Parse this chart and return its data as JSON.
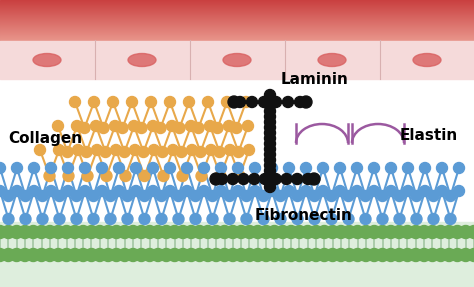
{
  "bg_color": "#ffffff",
  "top_band_color_top": "#c94040",
  "top_band_color_bottom": "#e8948a",
  "cell_layer_color": "#f5dada",
  "cell_nucleus_color": "#d96060",
  "collagen_color": "#E8A84A",
  "fibronectin_color": "#5B9BD5",
  "laminin_color": "#111111",
  "elastin_color": "#9B59A0",
  "membrane_color": "#6aaa55",
  "membrane_tail_color": "#aaccaa",
  "membrane_light_color": "#deeedd",
  "labels": {
    "collagen": "Collagen",
    "laminin": "Laminin",
    "elastin": "Elastin",
    "fibronectin": "Fibronectin"
  },
  "figsize": [
    4.74,
    2.87
  ],
  "dpi": 100
}
